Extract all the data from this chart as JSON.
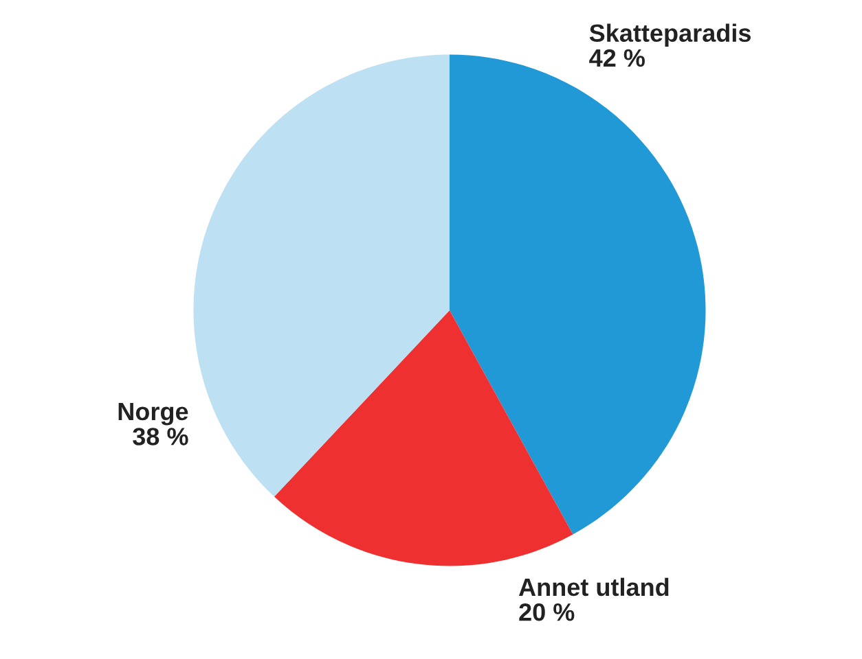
{
  "chart_data": {
    "type": "pie",
    "categories": [
      "Skatteparadis",
      "Annet utland",
      "Norge"
    ],
    "values": [
      42,
      20,
      38
    ],
    "value_labels": [
      "42 %",
      "20 %",
      "38 %"
    ],
    "colors": [
      "#2199d6",
      "#ee3030",
      "#bde0f2"
    ]
  }
}
